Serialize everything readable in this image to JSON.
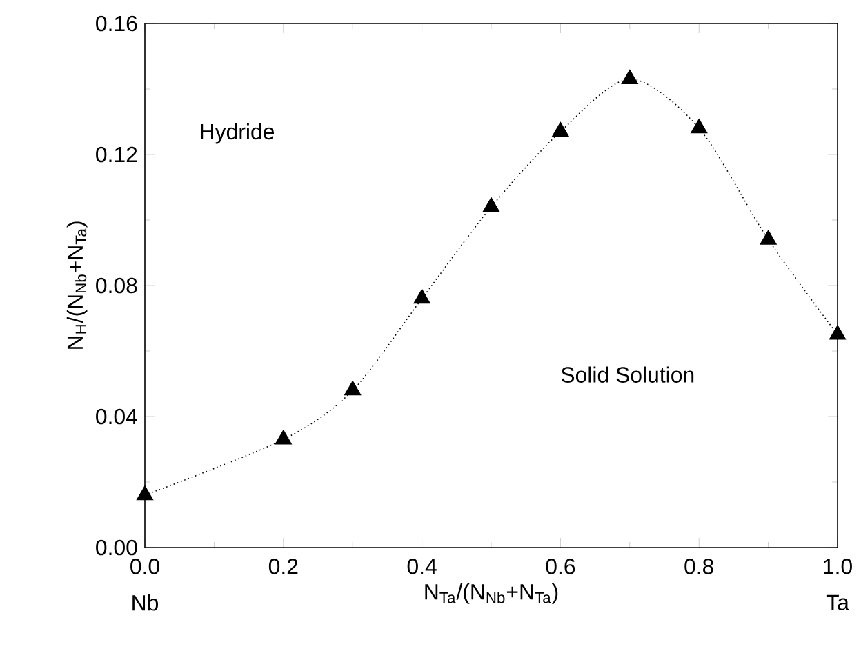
{
  "chart_data": {
    "type": "line",
    "xlabel": "N$_{Ta}$/(N$_{Nb}$+N$_{Ta}$)",
    "ylabel": "N$_{H}$/(N$_{Nb}$+N$_{Ta}$)",
    "x": [
      0.0,
      0.2,
      0.3,
      0.4,
      0.5,
      0.6,
      0.7,
      0.8,
      0.9,
      1.0
    ],
    "series": [
      {
        "color": "#000000",
        "values": [
          0.016,
          0.033,
          0.048,
          0.076,
          0.104,
          0.127,
          0.143,
          0.128,
          0.094,
          0.065
        ]
      }
    ],
    "xlim": [
      0.0,
      1.0
    ],
    "ylim": [
      0.0,
      0.16
    ],
    "xticks": [
      {
        "value": 0.0,
        "label": "0.0"
      },
      {
        "value": 0.2,
        "label": "0.2"
      },
      {
        "value": 0.4,
        "label": "0.4"
      },
      {
        "value": 0.6,
        "label": "0.6"
      },
      {
        "value": 0.8,
        "label": "0.8"
      },
      {
        "value": 1.0,
        "label": "1.0"
      }
    ],
    "yticks": [
      {
        "value": 0.0,
        "label": "0.00"
      },
      {
        "value": 0.04,
        "label": "0.04"
      },
      {
        "value": 0.08,
        "label": "0.08"
      },
      {
        "value": 0.12,
        "label": "0.12"
      },
      {
        "value": 0.16,
        "label": "0.16"
      }
    ],
    "annotations": [
      "Hydride",
      "Solid Solution",
      "Nb",
      "Ta"
    ],
    "marker": "triangle",
    "line_style": "dotted"
  }
}
